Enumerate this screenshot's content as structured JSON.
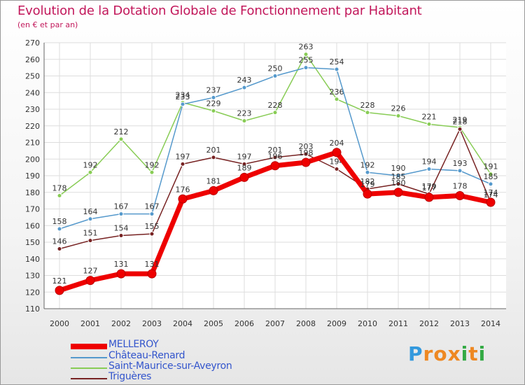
{
  "chart_data": {
    "type": "line",
    "title": "Evolution de la Dotation Globale de Fonctionnement par Habitant",
    "subtitle": "(en € et par an)",
    "xlabel": "",
    "ylabel": "",
    "ylim": [
      110,
      270
    ],
    "yticks": [
      110,
      120,
      130,
      140,
      150,
      160,
      170,
      180,
      190,
      200,
      210,
      220,
      230,
      240,
      250,
      260,
      270
    ],
    "grid": true,
    "legend_position": "bottom-left",
    "categories": [
      "2000",
      "2001",
      "2002",
      "2003",
      "2004",
      "2005",
      "2006",
      "2007",
      "2008",
      "2009",
      "2010",
      "2011",
      "2012",
      "2013",
      "2014"
    ],
    "series": [
      {
        "name": "Saint-Maurice-sur-Aveyron",
        "color": "#88cc55",
        "values": [
          178,
          192,
          212,
          192,
          234,
          229,
          223,
          228,
          263,
          236,
          228,
          226,
          221,
          219,
          191
        ]
      },
      {
        "name": "Château-Renard",
        "color": "#5599cc",
        "values": [
          158,
          164,
          167,
          167,
          233,
          237,
          243,
          250,
          255,
          254,
          192,
          190,
          194,
          193,
          185
        ]
      },
      {
        "name": "Triguères",
        "color": "#772222",
        "values": [
          146,
          151,
          154,
          155,
          197,
          201,
          197,
          201,
          203,
          194,
          182,
          185,
          179,
          218,
          174
        ]
      },
      {
        "name": "MELLEROY",
        "color": "#ee0000",
        "values": [
          121,
          127,
          131,
          131,
          176,
          181,
          189,
          196,
          198,
          204,
          179,
          180,
          177,
          178,
          174
        ]
      }
    ]
  },
  "legend": [
    {
      "label": "MELLEROY",
      "color": "#ee0000"
    },
    {
      "label": "Château-Renard",
      "color": "#5599cc"
    },
    {
      "label": "Saint-Maurice-sur-Aveyron",
      "color": "#88cc55"
    },
    {
      "label": "Triguères",
      "color": "#772222"
    }
  ],
  "logo": {
    "letters": [
      "P",
      "r",
      "o",
      "x",
      "i",
      "t",
      "i"
    ],
    "colors": [
      "#3399dd",
      "#ee8822",
      "#ee8822",
      "#ee8822",
      "#33aa44",
      "#ee8822",
      "#33aa44"
    ]
  }
}
